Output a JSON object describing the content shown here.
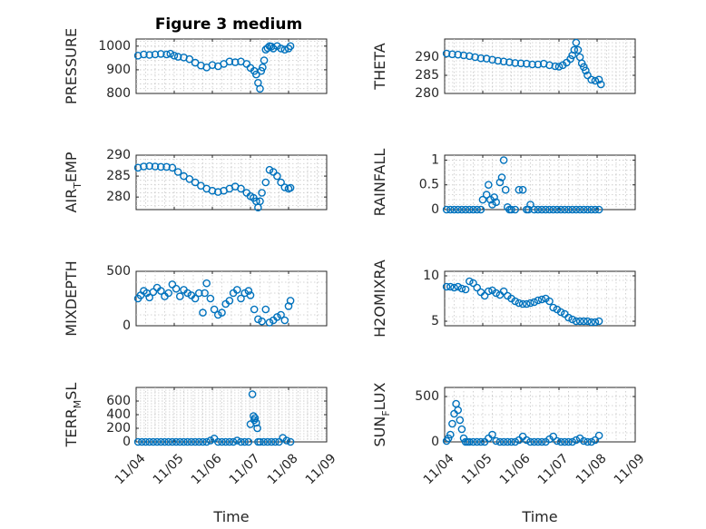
{
  "figure_title": "Figure 3 medium",
  "colors": {
    "marker": "#0072bd",
    "axis": "#262626",
    "grid": "#c8c8c8"
  },
  "chart_data": [
    {
      "id": "pressure",
      "type": "scatter",
      "marker": "circle",
      "ylabel": "PRESSURE",
      "ylabel_sub": "",
      "ylabel_rest": "",
      "ylim": [
        800,
        1030
      ],
      "yticks": [
        800,
        900,
        1000
      ],
      "ytick_labels": [
        "800",
        "900",
        "1000"
      ],
      "xlim": [
        0,
        5
      ],
      "xticks": [
        0,
        1,
        2,
        3,
        4,
        5
      ],
      "grid": true,
      "minor_grid": true,
      "xlabel": "",
      "x": [
        0.05,
        0.2,
        0.35,
        0.5,
        0.65,
        0.8,
        0.9,
        1.0,
        1.1,
        1.25,
        1.4,
        1.55,
        1.7,
        1.85,
        2.0,
        2.15,
        2.3,
        2.45,
        2.6,
        2.75,
        2.9,
        3.0,
        3.1,
        3.15,
        3.2,
        3.25,
        3.28,
        3.32,
        3.36,
        3.4,
        3.45,
        3.5,
        3.55,
        3.6,
        3.7,
        3.8,
        3.9,
        4.0,
        4.05
      ],
      "y": [
        960,
        965,
        963,
        965,
        967,
        965,
        968,
        960,
        955,
        952,
        945,
        930,
        918,
        910,
        920,
        915,
        925,
        935,
        932,
        935,
        925,
        908,
        895,
        880,
        845,
        820,
        895,
        910,
        940,
        985,
        992,
        1000,
        998,
        990,
        1000,
        990,
        985,
        990,
        1000
      ]
    },
    {
      "id": "theta",
      "type": "scatter",
      "marker": "circle",
      "ylabel": "THETA",
      "ylabel_sub": "",
      "ylabel_rest": "",
      "ylim": [
        280,
        295
      ],
      "yticks": [
        280,
        285,
        290
      ],
      "ytick_labels": [
        "280",
        "285",
        "290"
      ],
      "xlim": [
        0,
        5
      ],
      "xticks": [
        0,
        1,
        2,
        3,
        4,
        5
      ],
      "grid": true,
      "minor_grid": true,
      "xlabel": "",
      "x": [
        0.05,
        0.2,
        0.35,
        0.5,
        0.65,
        0.8,
        0.95,
        1.1,
        1.25,
        1.4,
        1.55,
        1.7,
        1.85,
        2.0,
        2.15,
        2.3,
        2.45,
        2.6,
        2.75,
        2.9,
        3.0,
        3.1,
        3.2,
        3.3,
        3.35,
        3.4,
        3.45,
        3.5,
        3.55,
        3.6,
        3.65,
        3.7,
        3.75,
        3.85,
        3.95,
        4.05,
        4.1
      ],
      "y": [
        291,
        290.8,
        290.7,
        290.5,
        290.3,
        290,
        289.7,
        289.6,
        289.3,
        289,
        288.8,
        288.6,
        288.4,
        288.3,
        288.2,
        288,
        288,
        288.2,
        287.8,
        287.5,
        287.4,
        287.8,
        288.5,
        289.5,
        290.5,
        292,
        294,
        292,
        290,
        288.3,
        287.3,
        286.3,
        285,
        283.8,
        283.5,
        283.8,
        282.5
      ]
    },
    {
      "id": "air_temp",
      "type": "scatter",
      "marker": "circle",
      "ylabel": "AIR",
      "ylabel_sub": "T",
      "ylabel_rest": "EMP",
      "ylim": [
        277,
        290
      ],
      "yticks": [
        280,
        285,
        290
      ],
      "ytick_labels": [
        "280",
        "285",
        "290"
      ],
      "xlim": [
        0,
        5
      ],
      "xticks": [
        0,
        1,
        2,
        3,
        4,
        5
      ],
      "grid": true,
      "minor_grid": true,
      "xlabel": "",
      "x": [
        0.05,
        0.2,
        0.35,
        0.5,
        0.65,
        0.8,
        0.95,
        1.1,
        1.25,
        1.4,
        1.55,
        1.7,
        1.85,
        2.0,
        2.15,
        2.3,
        2.45,
        2.6,
        2.75,
        2.9,
        3.0,
        3.08,
        3.15,
        3.2,
        3.25,
        3.3,
        3.4,
        3.5,
        3.6,
        3.7,
        3.8,
        3.9,
        4.0,
        4.05
      ],
      "y": [
        287,
        287.3,
        287.4,
        287.3,
        287.2,
        287.2,
        287,
        286,
        285,
        284.3,
        283.5,
        282.7,
        282,
        281.5,
        281.2,
        281.5,
        282,
        282.5,
        282,
        281,
        280.2,
        279.8,
        279,
        277.5,
        279,
        281,
        283.5,
        286.5,
        286,
        285,
        283.5,
        282.3,
        282,
        282.2
      ]
    },
    {
      "id": "rainfall",
      "type": "scatter",
      "marker": "circle",
      "ylabel": "RAINFALL",
      "ylabel_sub": "",
      "ylabel_rest": "",
      "ylim": [
        0,
        1.1
      ],
      "yticks": [
        0,
        0.5,
        1
      ],
      "ytick_labels": [
        "0",
        "0.5",
        "1"
      ],
      "xlim": [
        0,
        5
      ],
      "xticks": [
        0,
        1,
        2,
        3,
        4,
        5
      ],
      "grid": true,
      "minor_grid": true,
      "xlabel": "",
      "x": [
        0.05,
        0.15,
        0.25,
        0.35,
        0.45,
        0.55,
        0.65,
        0.75,
        0.85,
        0.95,
        1.0,
        1.1,
        1.15,
        1.2,
        1.25,
        1.3,
        1.35,
        1.45,
        1.5,
        1.55,
        1.6,
        1.65,
        1.7,
        1.75,
        1.85,
        1.95,
        2.05,
        2.15,
        2.2,
        2.25,
        2.35,
        2.45,
        2.55,
        2.65,
        2.75,
        2.85,
        2.95,
        3.05,
        3.15,
        3.25,
        3.35,
        3.45,
        3.55,
        3.65,
        3.75,
        3.85,
        3.95,
        4.05
      ],
      "y": [
        0,
        0,
        0,
        0,
        0,
        0,
        0,
        0,
        0,
        0,
        0.2,
        0.3,
        0.5,
        0.2,
        0.1,
        0.25,
        0.15,
        0.55,
        0.65,
        1.0,
        0.4,
        0.05,
        0,
        0,
        0,
        0.4,
        0.4,
        0,
        0,
        0.1,
        0,
        0,
        0,
        0,
        0,
        0,
        0,
        0,
        0,
        0,
        0,
        0,
        0,
        0,
        0,
        0,
        0,
        0
      ]
    },
    {
      "id": "mixdepth",
      "type": "scatter",
      "marker": "circle",
      "ylabel": "MIXDEPTH",
      "ylabel_sub": "",
      "ylabel_rest": "",
      "ylim": [
        0,
        500
      ],
      "yticks": [
        0,
        500
      ],
      "ytick_labels": [
        "0",
        "500"
      ],
      "xlim": [
        0,
        5
      ],
      "xticks": [
        0,
        1,
        2,
        3,
        4,
        5
      ],
      "grid": true,
      "minor_grid": true,
      "xlabel": "",
      "x": [
        0.05,
        0.12,
        0.2,
        0.28,
        0.35,
        0.45,
        0.55,
        0.65,
        0.75,
        0.85,
        0.95,
        1.05,
        1.15,
        1.25,
        1.35,
        1.45,
        1.55,
        1.65,
        1.75,
        1.8,
        1.85,
        1.95,
        2.05,
        2.15,
        2.25,
        2.35,
        2.45,
        2.55,
        2.65,
        2.75,
        2.85,
        2.95,
        3.0,
        3.1,
        3.2,
        3.3,
        3.4,
        3.5,
        3.6,
        3.7,
        3.8,
        3.9,
        4.0,
        4.05
      ],
      "y": [
        250,
        280,
        320,
        300,
        260,
        310,
        350,
        320,
        270,
        300,
        380,
        340,
        270,
        330,
        300,
        280,
        250,
        300,
        120,
        300,
        390,
        250,
        150,
        100,
        120,
        200,
        230,
        300,
        330,
        250,
        300,
        320,
        280,
        150,
        60,
        40,
        150,
        30,
        50,
        80,
        100,
        50,
        180,
        230
      ]
    },
    {
      "id": "h2omixra",
      "type": "scatter",
      "marker": "circle",
      "ylabel": "H2OMIXRA",
      "ylabel_sub": "",
      "ylabel_rest": "",
      "ylim": [
        4.5,
        10.5
      ],
      "yticks": [
        5,
        10
      ],
      "ytick_labels": [
        "5",
        "10"
      ],
      "xlim": [
        0,
        5
      ],
      "xticks": [
        0,
        1,
        2,
        3,
        4,
        5
      ],
      "grid": true,
      "minor_grid": true,
      "xlabel": "",
      "x": [
        0.05,
        0.15,
        0.25,
        0.35,
        0.45,
        0.55,
        0.65,
        0.75,
        0.85,
        0.95,
        1.05,
        1.15,
        1.25,
        1.35,
        1.45,
        1.55,
        1.65,
        1.75,
        1.85,
        1.95,
        2.05,
        2.15,
        2.25,
        2.35,
        2.45,
        2.55,
        2.65,
        2.75,
        2.85,
        2.95,
        3.05,
        3.15,
        3.25,
        3.35,
        3.45,
        3.55,
        3.65,
        3.75,
        3.85,
        3.95,
        4.05
      ],
      "y": [
        8.8,
        8.8,
        8.7,
        8.8,
        8.6,
        8.5,
        9.4,
        9.2,
        8.7,
        8.2,
        7.8,
        8.3,
        8.4,
        8.1,
        7.9,
        8.3,
        7.8,
        7.5,
        7.2,
        7.0,
        6.9,
        6.9,
        7.0,
        7.1,
        7.3,
        7.4,
        7.5,
        7.2,
        6.5,
        6.3,
        6.0,
        5.8,
        5.4,
        5.2,
        5.0,
        5.0,
        5.0,
        5.0,
        4.9,
        4.9,
        5.0
      ]
    },
    {
      "id": "terr_msl",
      "type": "scatter",
      "marker": "circle",
      "ylabel": "TERR",
      "ylabel_sub": "M",
      "ylabel_rest": "SL",
      "ylim": [
        0,
        800
      ],
      "yticks": [
        0,
        200,
        400,
        600
      ],
      "ytick_labels": [
        "0",
        "200",
        "400",
        "600"
      ],
      "xlim": [
        0,
        5
      ],
      "xticks": [
        0,
        1,
        2,
        3,
        4,
        5
      ],
      "xtick_labels": [
        "11/04",
        "11/05",
        "11/06",
        "11/07",
        "11/08",
        "11/09"
      ],
      "grid": true,
      "minor_grid": true,
      "xlabel": "Time",
      "x": [
        0.05,
        0.15,
        0.25,
        0.35,
        0.45,
        0.55,
        0.65,
        0.75,
        0.85,
        0.95,
        1.05,
        1.15,
        1.25,
        1.35,
        1.45,
        1.55,
        1.65,
        1.75,
        1.85,
        1.95,
        2.05,
        2.15,
        2.25,
        2.35,
        2.45,
        2.55,
        2.65,
        2.75,
        2.85,
        2.95,
        3.0,
        3.05,
        3.08,
        3.1,
        3.12,
        3.15,
        3.18,
        3.2,
        3.25,
        3.35,
        3.45,
        3.55,
        3.65,
        3.75,
        3.85,
        3.95,
        4.05
      ],
      "y": [
        0,
        0,
        0,
        0,
        0,
        0,
        0,
        0,
        0,
        0,
        0,
        0,
        0,
        0,
        0,
        0,
        0,
        0,
        0,
        20,
        50,
        0,
        0,
        0,
        0,
        0,
        20,
        0,
        0,
        0,
        260,
        700,
        380,
        320,
        350,
        280,
        200,
        0,
        0,
        0,
        0,
        0,
        0,
        0,
        60,
        20,
        0
      ]
    },
    {
      "id": "sun_flux",
      "type": "scatter",
      "marker": "circle",
      "ylabel": "SUN",
      "ylabel_sub": "F",
      "ylabel_rest": "LUX",
      "ylim": [
        0,
        600
      ],
      "yticks": [
        0,
        500
      ],
      "ytick_labels": [
        "0",
        "500"
      ],
      "xlim": [
        0,
        5
      ],
      "xticks": [
        0,
        1,
        2,
        3,
        4,
        5
      ],
      "xtick_labels": [
        "11/04",
        "11/05",
        "11/06",
        "11/07",
        "11/08",
        "11/09"
      ],
      "grid": true,
      "minor_grid": true,
      "xlabel": "Time",
      "x": [
        0.05,
        0.1,
        0.15,
        0.2,
        0.25,
        0.3,
        0.35,
        0.4,
        0.45,
        0.5,
        0.55,
        0.6,
        0.65,
        0.75,
        0.85,
        0.95,
        1.05,
        1.15,
        1.25,
        1.35,
        1.45,
        1.55,
        1.65,
        1.75,
        1.85,
        1.95,
        2.05,
        2.15,
        2.25,
        2.35,
        2.45,
        2.55,
        2.65,
        2.75,
        2.85,
        2.95,
        3.05,
        3.15,
        3.25,
        3.35,
        3.45,
        3.55,
        3.65,
        3.75,
        3.85,
        3.95,
        4.05
      ],
      "y": [
        10,
        40,
        80,
        200,
        310,
        420,
        350,
        240,
        140,
        40,
        0,
        0,
        0,
        0,
        0,
        0,
        0,
        40,
        80,
        10,
        0,
        0,
        0,
        0,
        0,
        20,
        60,
        20,
        0,
        0,
        0,
        0,
        0,
        30,
        60,
        10,
        0,
        0,
        0,
        0,
        20,
        40,
        10,
        0,
        0,
        20,
        70
      ]
    }
  ]
}
